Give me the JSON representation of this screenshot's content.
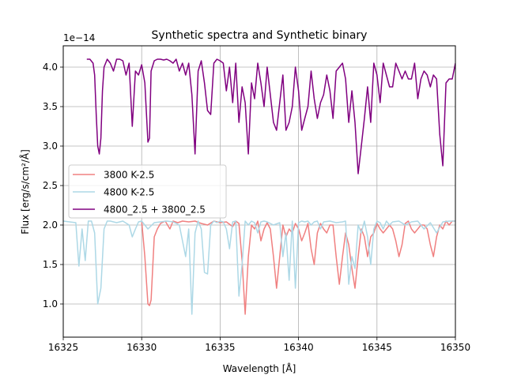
{
  "chart_data": {
    "type": "line",
    "title": "Synthetic spectra and Synthetic binary",
    "xlabel": "Wavelength [Å]",
    "ylabel": "Flux [erg/s/cm²/Å]",
    "y_offset_label": "1e−14",
    "xlim": [
      16325,
      16350
    ],
    "ylim": [
      0.58,
      4.27
    ],
    "xticks": [
      16325,
      16330,
      16335,
      16340,
      16345,
      16350
    ],
    "xtick_labels": [
      "16325",
      "16330",
      "16335",
      "16340",
      "16345",
      "16350"
    ],
    "yticks": [
      1.0,
      1.5,
      2.0,
      2.5,
      3.0,
      3.5,
      4.0
    ],
    "ytick_labels": [
      "1.0",
      "1.5",
      "2.0",
      "2.5",
      "3.0",
      "3.5",
      "4.0"
    ],
    "grid": true,
    "legend_position": "center-left",
    "series": [
      {
        "name": "3800 K-2.5",
        "color": "#f08080",
        "x": [
          16330.0,
          16330.2,
          16330.4,
          16330.5,
          16330.6,
          16330.8,
          16331.0,
          16331.2,
          16331.5,
          16331.8,
          16332.0,
          16332.3,
          16332.6,
          16333.0,
          16333.4,
          16333.8,
          16334.2,
          16334.6,
          16335.0,
          16335.4,
          16335.8,
          16336.0,
          16336.2,
          16336.4,
          16336.6,
          16336.8,
          16337.0,
          16337.2,
          16337.4,
          16337.6,
          16337.8,
          16338.0,
          16338.2,
          16338.4,
          16338.6,
          16338.8,
          16339.0,
          16339.2,
          16339.4,
          16339.6,
          16339.8,
          16340.0,
          16340.2,
          16340.4,
          16340.6,
          16340.8,
          16341.0,
          16341.2,
          16341.4,
          16341.6,
          16341.8,
          16342.0,
          16342.2,
          16342.4,
          16342.6,
          16342.8,
          16343.0,
          16343.2,
          16343.4,
          16343.6,
          16343.8,
          16344.0,
          16344.2,
          16344.4,
          16344.6,
          16344.8,
          16345.0,
          16345.2,
          16345.4,
          16345.6,
          16345.8,
          16346.0,
          16346.2,
          16346.4,
          16346.6,
          16346.8,
          16347.0,
          16347.2,
          16347.4,
          16347.6,
          16347.8,
          16348.0,
          16348.2,
          16348.4,
          16348.6,
          16348.8,
          16349.0,
          16349.2,
          16349.4,
          16349.6,
          16349.8,
          16350.0
        ],
        "y": [
          2.05,
          1.6,
          1.0,
          0.98,
          1.05,
          1.85,
          1.95,
          2.02,
          2.05,
          1.95,
          2.05,
          2.03,
          2.05,
          2.04,
          2.05,
          2.02,
          2.0,
          2.05,
          2.03,
          2.04,
          1.98,
          2.05,
          2.02,
          1.55,
          0.87,
          1.6,
          2.0,
          1.95,
          2.05,
          1.8,
          1.95,
          2.03,
          1.95,
          1.6,
          1.2,
          1.6,
          2.0,
          1.85,
          1.95,
          1.9,
          2.02,
          1.95,
          1.8,
          1.9,
          2.02,
          1.7,
          1.5,
          1.9,
          2.02,
          1.95,
          1.9,
          2.0,
          2.0,
          1.6,
          1.25,
          1.6,
          1.9,
          1.75,
          1.45,
          1.2,
          1.6,
          1.95,
          1.85,
          1.6,
          1.85,
          1.9,
          2.02,
          1.95,
          1.9,
          1.95,
          2.0,
          1.95,
          1.8,
          1.6,
          1.75,
          2.02,
          2.05,
          1.95,
          1.9,
          1.95,
          2.0,
          2.0,
          1.95,
          1.75,
          1.6,
          1.85,
          2.0,
          1.95,
          2.05,
          2.0,
          2.05,
          2.05
        ]
      },
      {
        "name": "4800 K-2.5",
        "color": "#add8e6",
        "x": [
          16325.0,
          16325.4,
          16325.8,
          16326.0,
          16326.2,
          16326.4,
          16326.6,
          16326.8,
          16327.0,
          16327.2,
          16327.4,
          16327.6,
          16327.8,
          16328.0,
          16328.4,
          16328.8,
          16329.2,
          16329.4,
          16329.6,
          16329.8,
          16330.0,
          16330.4,
          16330.8,
          16331.2,
          16331.6,
          16332.0,
          16332.4,
          16332.8,
          16333.0,
          16333.2,
          16333.4,
          16333.6,
          16333.8,
          16334.0,
          16334.2,
          16334.4,
          16334.6,
          16334.8,
          16335.0,
          16335.2,
          16335.4,
          16335.6,
          16335.8,
          16336.0,
          16336.2,
          16336.4,
          16336.6,
          16336.8,
          16337.0,
          16337.2,
          16337.4,
          16337.6,
          16337.8,
          16338.0,
          16338.4,
          16338.8,
          16339.0,
          16339.2,
          16339.4,
          16339.6,
          16339.8,
          16340.0,
          16340.2,
          16340.4,
          16340.6,
          16340.8,
          16341.0,
          16341.2,
          16341.4,
          16341.6,
          16342.0,
          16342.4,
          16342.8,
          16343.0,
          16343.2,
          16343.4,
          16343.6,
          16343.8,
          16344.0,
          16344.2,
          16344.4,
          16344.6,
          16344.8,
          16345.0,
          16345.2,
          16345.4,
          16345.6,
          16345.8,
          16346.0,
          16346.4,
          16346.8,
          16347.2,
          16347.6,
          16348.0,
          16348.4,
          16348.8,
          16349.2,
          16349.6,
          16350.0
        ],
        "y": [
          2.05,
          2.04,
          2.03,
          1.48,
          1.95,
          1.55,
          2.05,
          2.05,
          1.9,
          1.0,
          1.2,
          1.95,
          2.05,
          2.05,
          2.03,
          2.05,
          2.0,
          1.85,
          1.95,
          2.04,
          2.05,
          1.95,
          2.03,
          2.04,
          2.05,
          2.04,
          2.0,
          1.6,
          1.95,
          0.87,
          1.9,
          2.05,
          1.95,
          1.4,
          1.38,
          2.0,
          2.05,
          2.03,
          2.05,
          2.04,
          1.95,
          1.7,
          2.04,
          2.05,
          1.1,
          1.5,
          2.05,
          2.0,
          2.05,
          2.03,
          1.9,
          2.04,
          2.05,
          2.04,
          2.0,
          2.03,
          1.6,
          1.9,
          1.3,
          2.05,
          1.2,
          2.03,
          2.05,
          2.04,
          2.05,
          2.0,
          2.04,
          2.05,
          1.95,
          2.04,
          2.05,
          2.03,
          2.04,
          2.05,
          1.25,
          1.6,
          1.45,
          2.0,
          1.9,
          2.05,
          1.85,
          1.5,
          1.95,
          2.05,
          2.03,
          1.95,
          2.05,
          2.0,
          2.04,
          2.05,
          2.0,
          2.04,
          2.05,
          1.95,
          2.03,
          1.9,
          2.04,
          2.05,
          2.05
        ]
      },
      {
        "name": "4800_2.5 + 3800_2.5",
        "color": "#800080",
        "x": [
          16326.5,
          16326.7,
          16326.9,
          16327.0,
          16327.1,
          16327.2,
          16327.3,
          16327.4,
          16327.5,
          16327.6,
          16327.8,
          16328.0,
          16328.2,
          16328.4,
          16328.6,
          16328.8,
          16329.0,
          16329.2,
          16329.4,
          16329.6,
          16329.8,
          16330.0,
          16330.2,
          16330.4,
          16330.5,
          16330.6,
          16330.8,
          16331.0,
          16331.2,
          16331.4,
          16331.6,
          16331.8,
          16332.0,
          16332.2,
          16332.4,
          16332.6,
          16332.8,
          16333.0,
          16333.2,
          16333.4,
          16333.6,
          16333.8,
          16334.0,
          16334.2,
          16334.4,
          16334.6,
          16334.8,
          16335.0,
          16335.2,
          16335.4,
          16335.6,
          16335.8,
          16336.0,
          16336.2,
          16336.4,
          16336.6,
          16336.8,
          16337.0,
          16337.2,
          16337.4,
          16337.6,
          16337.8,
          16338.0,
          16338.2,
          16338.4,
          16338.6,
          16338.8,
          16339.0,
          16339.2,
          16339.4,
          16339.6,
          16339.8,
          16340.0,
          16340.2,
          16340.4,
          16340.6,
          16340.8,
          16341.0,
          16341.2,
          16341.4,
          16341.6,
          16341.8,
          16342.0,
          16342.2,
          16342.4,
          16342.6,
          16342.8,
          16343.0,
          16343.2,
          16343.4,
          16343.6,
          16343.8,
          16344.0,
          16344.2,
          16344.4,
          16344.6,
          16344.8,
          16345.0,
          16345.2,
          16345.4,
          16345.6,
          16345.8,
          16346.0,
          16346.2,
          16346.4,
          16346.6,
          16346.8,
          16347.0,
          16347.2,
          16347.4,
          16347.6,
          16347.8,
          16348.0,
          16348.2,
          16348.4,
          16348.6,
          16348.8,
          16349.0,
          16349.2,
          16349.4,
          16349.6,
          16349.8,
          16350.0
        ],
        "y": [
          4.1,
          4.1,
          4.05,
          3.9,
          3.4,
          3.0,
          2.9,
          3.1,
          3.7,
          4.0,
          4.1,
          4.05,
          3.95,
          4.1,
          4.1,
          4.08,
          3.9,
          4.05,
          3.25,
          3.95,
          3.9,
          4.03,
          3.8,
          3.05,
          3.1,
          3.95,
          4.08,
          4.1,
          4.1,
          4.09,
          4.1,
          4.08,
          4.05,
          4.1,
          3.95,
          4.05,
          3.9,
          4.05,
          3.65,
          2.9,
          3.95,
          4.08,
          3.8,
          3.45,
          3.4,
          4.05,
          4.1,
          4.08,
          4.05,
          3.7,
          4.0,
          3.55,
          4.05,
          3.3,
          3.75,
          3.55,
          2.9,
          3.8,
          3.6,
          4.05,
          3.8,
          3.5,
          4.0,
          3.65,
          3.3,
          3.2,
          3.55,
          3.9,
          3.2,
          3.3,
          3.5,
          4.0,
          3.7,
          3.2,
          3.35,
          3.5,
          3.95,
          3.6,
          3.35,
          3.55,
          3.65,
          3.9,
          3.7,
          3.35,
          3.95,
          4.0,
          4.05,
          3.85,
          3.3,
          3.7,
          3.3,
          2.65,
          3.0,
          3.35,
          3.75,
          3.3,
          4.05,
          3.9,
          3.55,
          4.05,
          3.9,
          3.75,
          3.75,
          4.05,
          3.95,
          3.85,
          3.95,
          3.85,
          3.85,
          4.05,
          3.6,
          3.85,
          3.95,
          3.9,
          3.75,
          3.9,
          3.85,
          3.15,
          2.75,
          3.8,
          3.85,
          3.85,
          4.05
        ]
      }
    ]
  }
}
